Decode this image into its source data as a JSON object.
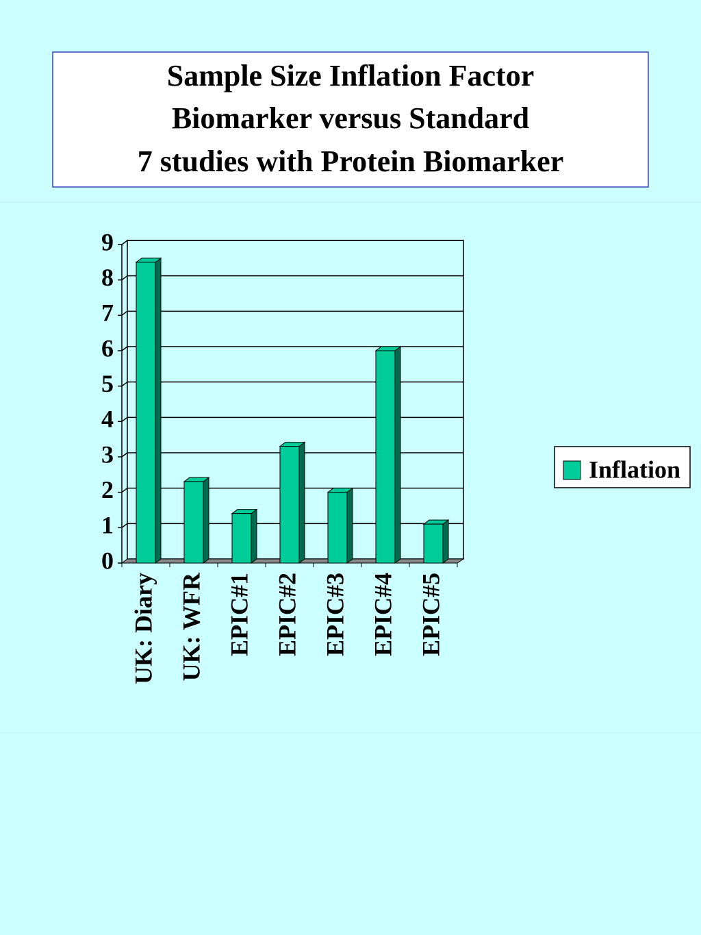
{
  "chart_data": {
    "type": "bar3d",
    "title": [
      "Sample Size Inflation Factor",
      "Biomarker versus Standard",
      "7 studies with Protein Biomarker"
    ],
    "categories": [
      "UK: Diary",
      "UK: WFR",
      "EPIC#1",
      "EPIC#2",
      "EPIC#3",
      "EPIC#4",
      "EPIC#5"
    ],
    "series": [
      {
        "name": "Inflation",
        "color": "#00cc99",
        "values": [
          8.5,
          2.3,
          1.4,
          3.3,
          2.0,
          6.0,
          1.1
        ]
      }
    ],
    "ylim": [
      0,
      9
    ],
    "yticks": [
      0,
      1,
      2,
      3,
      4,
      5,
      6,
      7,
      8,
      9
    ],
    "grid": true,
    "legend": "right"
  }
}
